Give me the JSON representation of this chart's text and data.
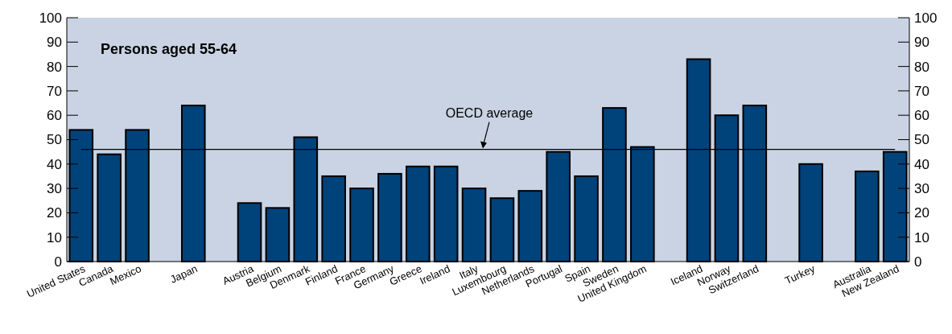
{
  "chart_data": {
    "type": "bar",
    "title": "Persons aged 55-64",
    "categories": [
      "United States",
      "Canada",
      "Mexico",
      null,
      "Japan",
      null,
      "Austria",
      "Belgium",
      "Denmark",
      "Finland",
      "France",
      "Germany",
      "Greece",
      "Ireland",
      "Italy",
      "Luxembourg",
      "Netherlands",
      "Portugal",
      "Spain",
      "Sweden",
      "United Kingdom",
      null,
      "Iceland",
      "Norway",
      "Switzerland",
      null,
      "Turkey",
      null,
      "Australia",
      "New Zealand"
    ],
    "values": [
      54,
      44,
      54,
      null,
      64,
      null,
      24,
      22,
      51,
      35,
      30,
      36,
      39,
      39,
      30,
      26,
      29,
      45,
      35,
      63,
      47,
      null,
      83,
      60,
      64,
      null,
      40,
      null,
      37,
      45
    ],
    "color": "#00427a",
    "ylim": [
      0,
      100
    ],
    "yticks": [
      0,
      10,
      20,
      30,
      40,
      50,
      60,
      70,
      80,
      90,
      100
    ],
    "y2lim": [
      0,
      100
    ],
    "y2ticks": [
      0,
      10,
      20,
      30,
      40,
      50,
      60,
      70,
      80,
      90,
      100
    ],
    "ref_lines": [
      {
        "axis": "y",
        "value": 46,
        "label": "OECD average",
        "color": "#000000"
      }
    ],
    "grid": false
  }
}
